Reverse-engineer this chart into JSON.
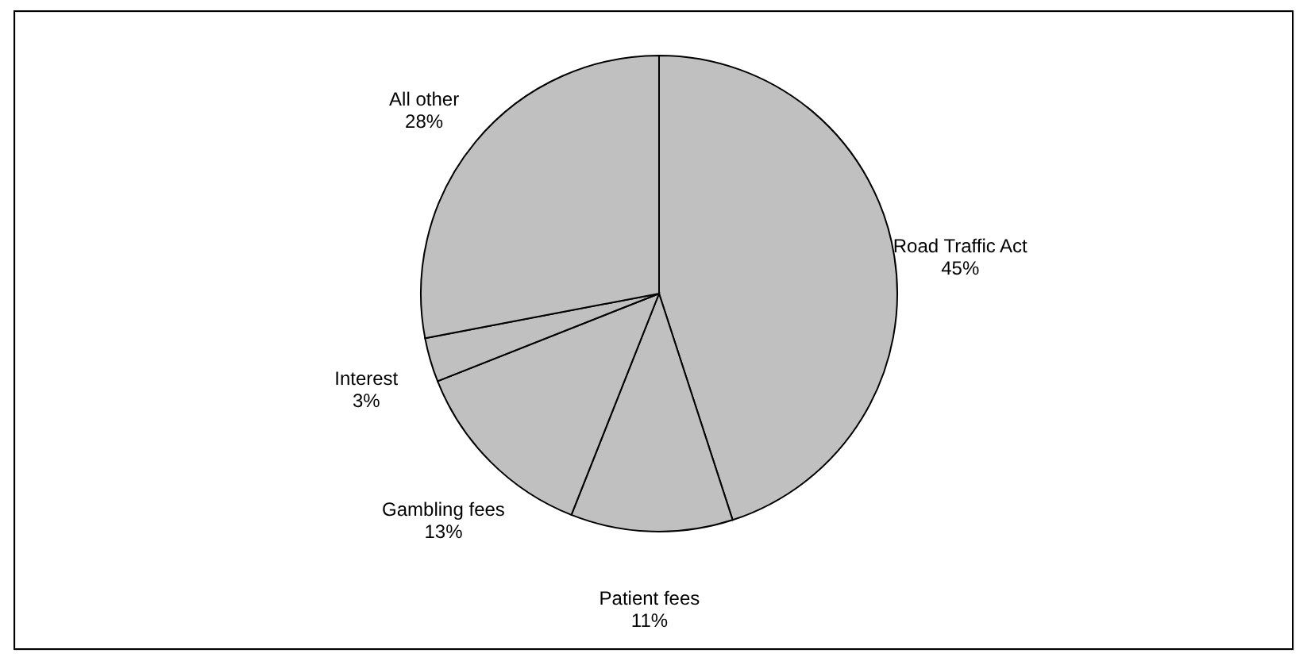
{
  "chart_data": {
    "type": "pie",
    "categories": [
      "Road Traffic Act",
      "Patient fees",
      "Gambling fees",
      "Interest",
      "All other"
    ],
    "values": [
      45,
      11,
      13,
      3,
      28
    ],
    "value_labels": [
      "45%",
      "11%",
      "13%",
      "3%",
      "28%"
    ],
    "colors": [
      "#c0c0c0",
      "#c0c0c0",
      "#c0c0c0",
      "#c0c0c0",
      "#c0c0c0"
    ],
    "legend": false
  }
}
